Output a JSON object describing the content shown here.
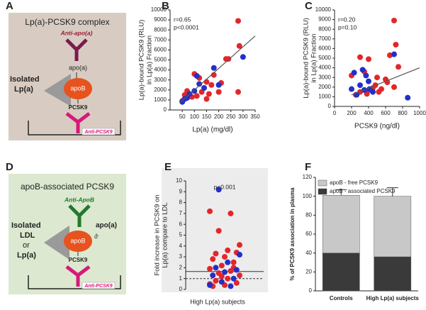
{
  "panel_labels": [
    "A",
    "B",
    "C",
    "D",
    "E",
    "F"
  ],
  "diagrams": [
    {
      "title": "Lp(a)-PCSK9 complex",
      "capture_antibody": "Anti-apo(a)",
      "apo": "apo(a)",
      "isolated_lines": [
        "Isolated",
        "Lp(a)"
      ],
      "core": "apoB",
      "protein": "PCSK9",
      "detection_antibody": "Anti-PCSK9"
    },
    {
      "title": "apoB-associated PCSK9",
      "capture_antibody": "Anti-ApoB",
      "apo": "apo(a)",
      "connector": "or",
      "isolated_lines": [
        "Isolated",
        "LDL",
        "or",
        "Lp(a)"
      ],
      "core": "apoB",
      "protein": "PCSK9",
      "detection_antibody": "Anti-PCSK9"
    }
  ],
  "chart_data": [
    {
      "type": "scatter",
      "x_label": "Lp(a) (mg/dl)",
      "y_label_lines": [
        "Lp(a)-bound PCSK9 (RLU)",
        "in Lp(a) Fraction"
      ],
      "annotations": [
        "r=0.65",
        "p<0.0001"
      ],
      "xlim": [
        0,
        350
      ],
      "xticks": [
        50,
        100,
        150,
        200,
        250,
        300,
        350
      ],
      "ylim": [
        0,
        10000
      ],
      "yticks": [
        0,
        1000,
        2000,
        3000,
        4000,
        5000,
        6000,
        7000,
        8000,
        9000,
        10000
      ],
      "series": [
        {
          "color": "#e3262b",
          "x": [
            280,
            285,
            230,
            240,
            280,
            200,
            100,
            120,
            150,
            170,
            180,
            60,
            70,
            90,
            110,
            130,
            150,
            210,
            50,
            160
          ],
          "y": [
            8900,
            6400,
            5100,
            5100,
            1800,
            1800,
            3600,
            3200,
            2800,
            2500,
            3500,
            1500,
            1900,
            1300,
            1400,
            1800,
            1100,
            2700,
            900,
            1600
          ]
        },
        {
          "color": "#2130c8",
          "x": [
            300,
            180,
            120,
            140,
            100,
            80,
            60,
            50,
            110,
            200,
            70
          ],
          "y": [
            5300,
            4200,
            2600,
            2200,
            1900,
            1600,
            1100,
            800,
            3400,
            2500,
            1200
          ]
        }
      ],
      "fit": {
        "color": "#555555",
        "x": [
          40,
          350
        ],
        "y": [
          700,
          7400
        ]
      }
    },
    {
      "type": "scatter",
      "x_label": "PCSK9 (ng/dl)",
      "y_label_lines": [
        "Lp(a)-bound PCSK9 (RLU)",
        "in Lp(a) Fraction"
      ],
      "annotations": [
        "r=0.20",
        "p=0.10"
      ],
      "xlim": [
        0,
        1000
      ],
      "xticks": [
        0,
        200,
        400,
        600,
        800,
        1000
      ],
      "ylim": [
        0,
        10000
      ],
      "yticks": [
        0,
        1000,
        2000,
        3000,
        4000,
        5000,
        6000,
        7000,
        8000,
        9000,
        10000
      ],
      "series": [
        {
          "color": "#e3262b",
          "x": [
            700,
            720,
            650,
            300,
            400,
            750,
            200,
            350,
            500,
            600,
            550,
            450,
            400,
            480,
            300,
            250,
            620,
            380,
            520,
            700
          ],
          "y": [
            8900,
            6400,
            5300,
            5100,
            4900,
            4100,
            3200,
            3600,
            3000,
            2800,
            1800,
            1900,
            1700,
            2200,
            1500,
            1200,
            2500,
            1300,
            1500,
            2000
          ]
        },
        {
          "color": "#2130c8",
          "x": [
            230,
            370,
            330,
            700,
            300,
            350,
            400,
            200,
            860,
            450,
            260,
            410
          ],
          "y": [
            3500,
            3200,
            3800,
            5400,
            2200,
            1700,
            2600,
            1800,
            900,
            1500,
            1200,
            1800
          ]
        }
      ],
      "fit": {
        "color": "#555555",
        "x": [
          200,
          1000
        ],
        "y": [
          1200,
          4000
        ]
      }
    },
    {
      "type": "strip",
      "x_label": "High Lp(a) subjects",
      "y_label_lines": [
        "Fold increase in PCSK9 on",
        "Lp(a) compare to LDL"
      ],
      "annotations": [
        "p<0.001"
      ],
      "ylim": [
        0,
        10
      ],
      "yticks": [
        0,
        1,
        2,
        3,
        4,
        5,
        6,
        7,
        8,
        9,
        10
      ],
      "reference_lines": [
        {
          "value": 1.65,
          "dashed": false
        },
        {
          "value": 1,
          "dashed": true
        }
      ],
      "series": [
        {
          "color": "#e3262b",
          "values": [
            7.2,
            7.0,
            5.4,
            4.1,
            3.6,
            3.3,
            3.4,
            3.0,
            2.8,
            2.5,
            2.2,
            1.9,
            1.7,
            1.5,
            1.3,
            1.0,
            0.8,
            0.6,
            0.4,
            0.3,
            2.0,
            1.2,
            0.5
          ]
        },
        {
          "color": "#2130c8",
          "values": [
            9.2,
            3.2,
            2.5,
            2.0,
            1.8,
            1.6,
            1.3,
            1.0,
            0.7,
            0.4,
            0.3
          ]
        }
      ]
    },
    {
      "type": "stacked_bar",
      "y_label": "% of PCSK9 association in plasma",
      "categories": [
        "Controls",
        "High Lp(a) subjects"
      ],
      "ylim": [
        0,
        120
      ],
      "yticks": [
        0,
        20,
        40,
        60,
        80,
        100,
        120
      ],
      "series": [
        {
          "name": "apoB - associated PCSK9",
          "color": "#3a3a3a",
          "values": [
            40,
            36
          ],
          "error": [
            3,
            6
          ]
        },
        {
          "name": "apoB - free PCSK9",
          "color": "#c8c8c8",
          "values": [
            61,
            64
          ],
          "error": [
            6,
            9
          ]
        }
      ]
    }
  ]
}
